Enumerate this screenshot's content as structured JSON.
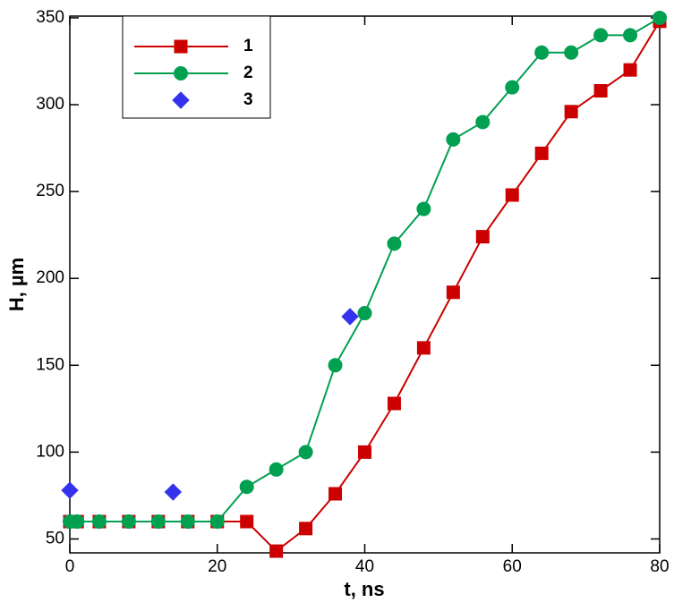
{
  "chart_data": {
    "type": "line",
    "x_label": "t, ns",
    "y_label": "H, µm",
    "xlim": [
      0,
      80
    ],
    "ylim": [
      42,
      351
    ],
    "xticks": [
      0,
      20,
      40,
      60,
      80
    ],
    "yticks": [
      50,
      100,
      150,
      200,
      250,
      300,
      350
    ],
    "series": [
      {
        "name": "1",
        "color": "#cc0000",
        "marker": "square",
        "line": true,
        "x": [
          0,
          1,
          4,
          8,
          12,
          16,
          20,
          24,
          28,
          32,
          36,
          40,
          44,
          48,
          52,
          56,
          60,
          64,
          68,
          72,
          76,
          80
        ],
        "values": [
          60,
          60,
          60,
          60,
          60,
          60,
          60,
          60,
          43,
          56,
          76,
          100,
          128,
          160,
          192,
          224,
          248,
          272,
          296,
          308,
          320,
          348
        ]
      },
      {
        "name": "2",
        "color": "#00a050",
        "marker": "circle",
        "line": true,
        "x": [
          0,
          1,
          4,
          8,
          12,
          16,
          20,
          24,
          28,
          32,
          36,
          40,
          44,
          48,
          52,
          56,
          60,
          64,
          68,
          72,
          76,
          80
        ],
        "values": [
          60,
          60,
          60,
          60,
          60,
          60,
          60,
          80,
          90,
          100,
          150,
          180,
          220,
          240,
          280,
          290,
          310,
          330,
          330,
          340,
          340,
          350
        ]
      },
      {
        "name": "3",
        "color": "#3333ee",
        "marker": "diamond",
        "line": false,
        "x": [
          0,
          14,
          38
        ],
        "values": [
          78,
          77,
          178
        ]
      }
    ]
  }
}
